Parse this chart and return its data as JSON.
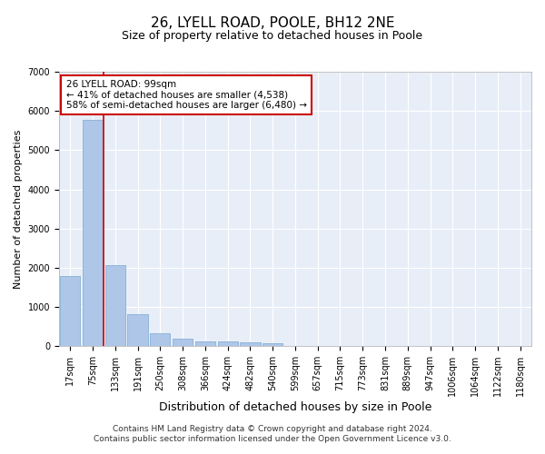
{
  "title": "26, LYELL ROAD, POOLE, BH12 2NE",
  "subtitle": "Size of property relative to detached houses in Poole",
  "xlabel": "Distribution of detached houses by size in Poole",
  "ylabel": "Number of detached properties",
  "bar_color": "#aec6e8",
  "bar_edge_color": "#7aa8d0",
  "vline_color": "#cc0000",
  "annotation_text": "26 LYELL ROAD: 99sqm\n← 41% of detached houses are smaller (4,538)\n58% of semi-detached houses are larger (6,480) →",
  "annotation_box_color": "#ffffff",
  "annotation_border_color": "#cc0000",
  "categories": [
    "17sqm",
    "75sqm",
    "133sqm",
    "191sqm",
    "250sqm",
    "308sqm",
    "366sqm",
    "424sqm",
    "482sqm",
    "540sqm",
    "599sqm",
    "657sqm",
    "715sqm",
    "773sqm",
    "831sqm",
    "889sqm",
    "947sqm",
    "1006sqm",
    "1064sqm",
    "1122sqm",
    "1180sqm"
  ],
  "values": [
    1780,
    5780,
    2060,
    820,
    340,
    190,
    130,
    110,
    100,
    80,
    0,
    0,
    0,
    0,
    0,
    0,
    0,
    0,
    0,
    0,
    0
  ],
  "ylim": [
    0,
    7000
  ],
  "yticks": [
    0,
    1000,
    2000,
    3000,
    4000,
    5000,
    6000,
    7000
  ],
  "background_color": "#e8eef8",
  "grid_color": "#ffffff",
  "footer_line1": "Contains HM Land Registry data © Crown copyright and database right 2024.",
  "footer_line2": "Contains public sector information licensed under the Open Government Licence v3.0.",
  "title_fontsize": 11,
  "subtitle_fontsize": 9,
  "xlabel_fontsize": 9,
  "ylabel_fontsize": 8,
  "tick_fontsize": 7,
  "footer_fontsize": 6.5,
  "annotation_fontsize": 7.5
}
